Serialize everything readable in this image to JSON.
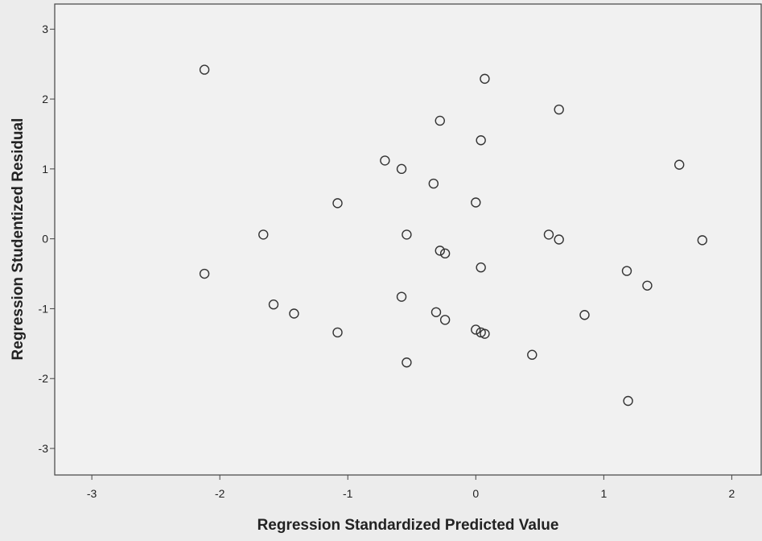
{
  "chart_data": {
    "type": "scatter",
    "x_label": "Regression Standardized Predicted Value",
    "y_label": "Regression Studentized Residual",
    "color": "#333333",
    "xlim": [
      -3.29,
      2.23
    ],
    "ylim": [
      -3.38,
      3.36
    ],
    "xticks": [
      -3,
      -2,
      -1,
      0,
      1,
      2
    ],
    "yticks": [
      -3,
      -2,
      -1,
      0,
      1,
      2,
      3
    ],
    "x": [
      -2.12,
      0.07,
      0.65,
      -0.28,
      0.04,
      -0.71,
      -0.58,
      1.59,
      -0.33,
      0.0,
      -1.08,
      -1.66,
      -0.54,
      0.57,
      0.65,
      1.77,
      -0.28,
      -0.24,
      0.04,
      -2.12,
      1.18,
      1.34,
      -0.58,
      -1.58,
      -1.42,
      -0.31,
      0.85,
      -0.24,
      -1.08,
      0.0,
      0.04,
      0.07,
      0.44,
      -0.54,
      1.19
    ],
    "values": [
      2.42,
      2.29,
      1.85,
      1.69,
      1.41,
      1.12,
      1.0,
      1.06,
      0.79,
      0.52,
      0.51,
      0.06,
      0.06,
      0.06,
      -0.01,
      -0.02,
      -0.17,
      -0.21,
      -0.41,
      -0.5,
      -0.46,
      -0.67,
      -0.83,
      -0.94,
      -1.07,
      -1.05,
      -1.09,
      -1.16,
      -1.34,
      -1.3,
      -1.34,
      -1.36,
      -1.66,
      -1.77,
      -2.32
    ]
  }
}
